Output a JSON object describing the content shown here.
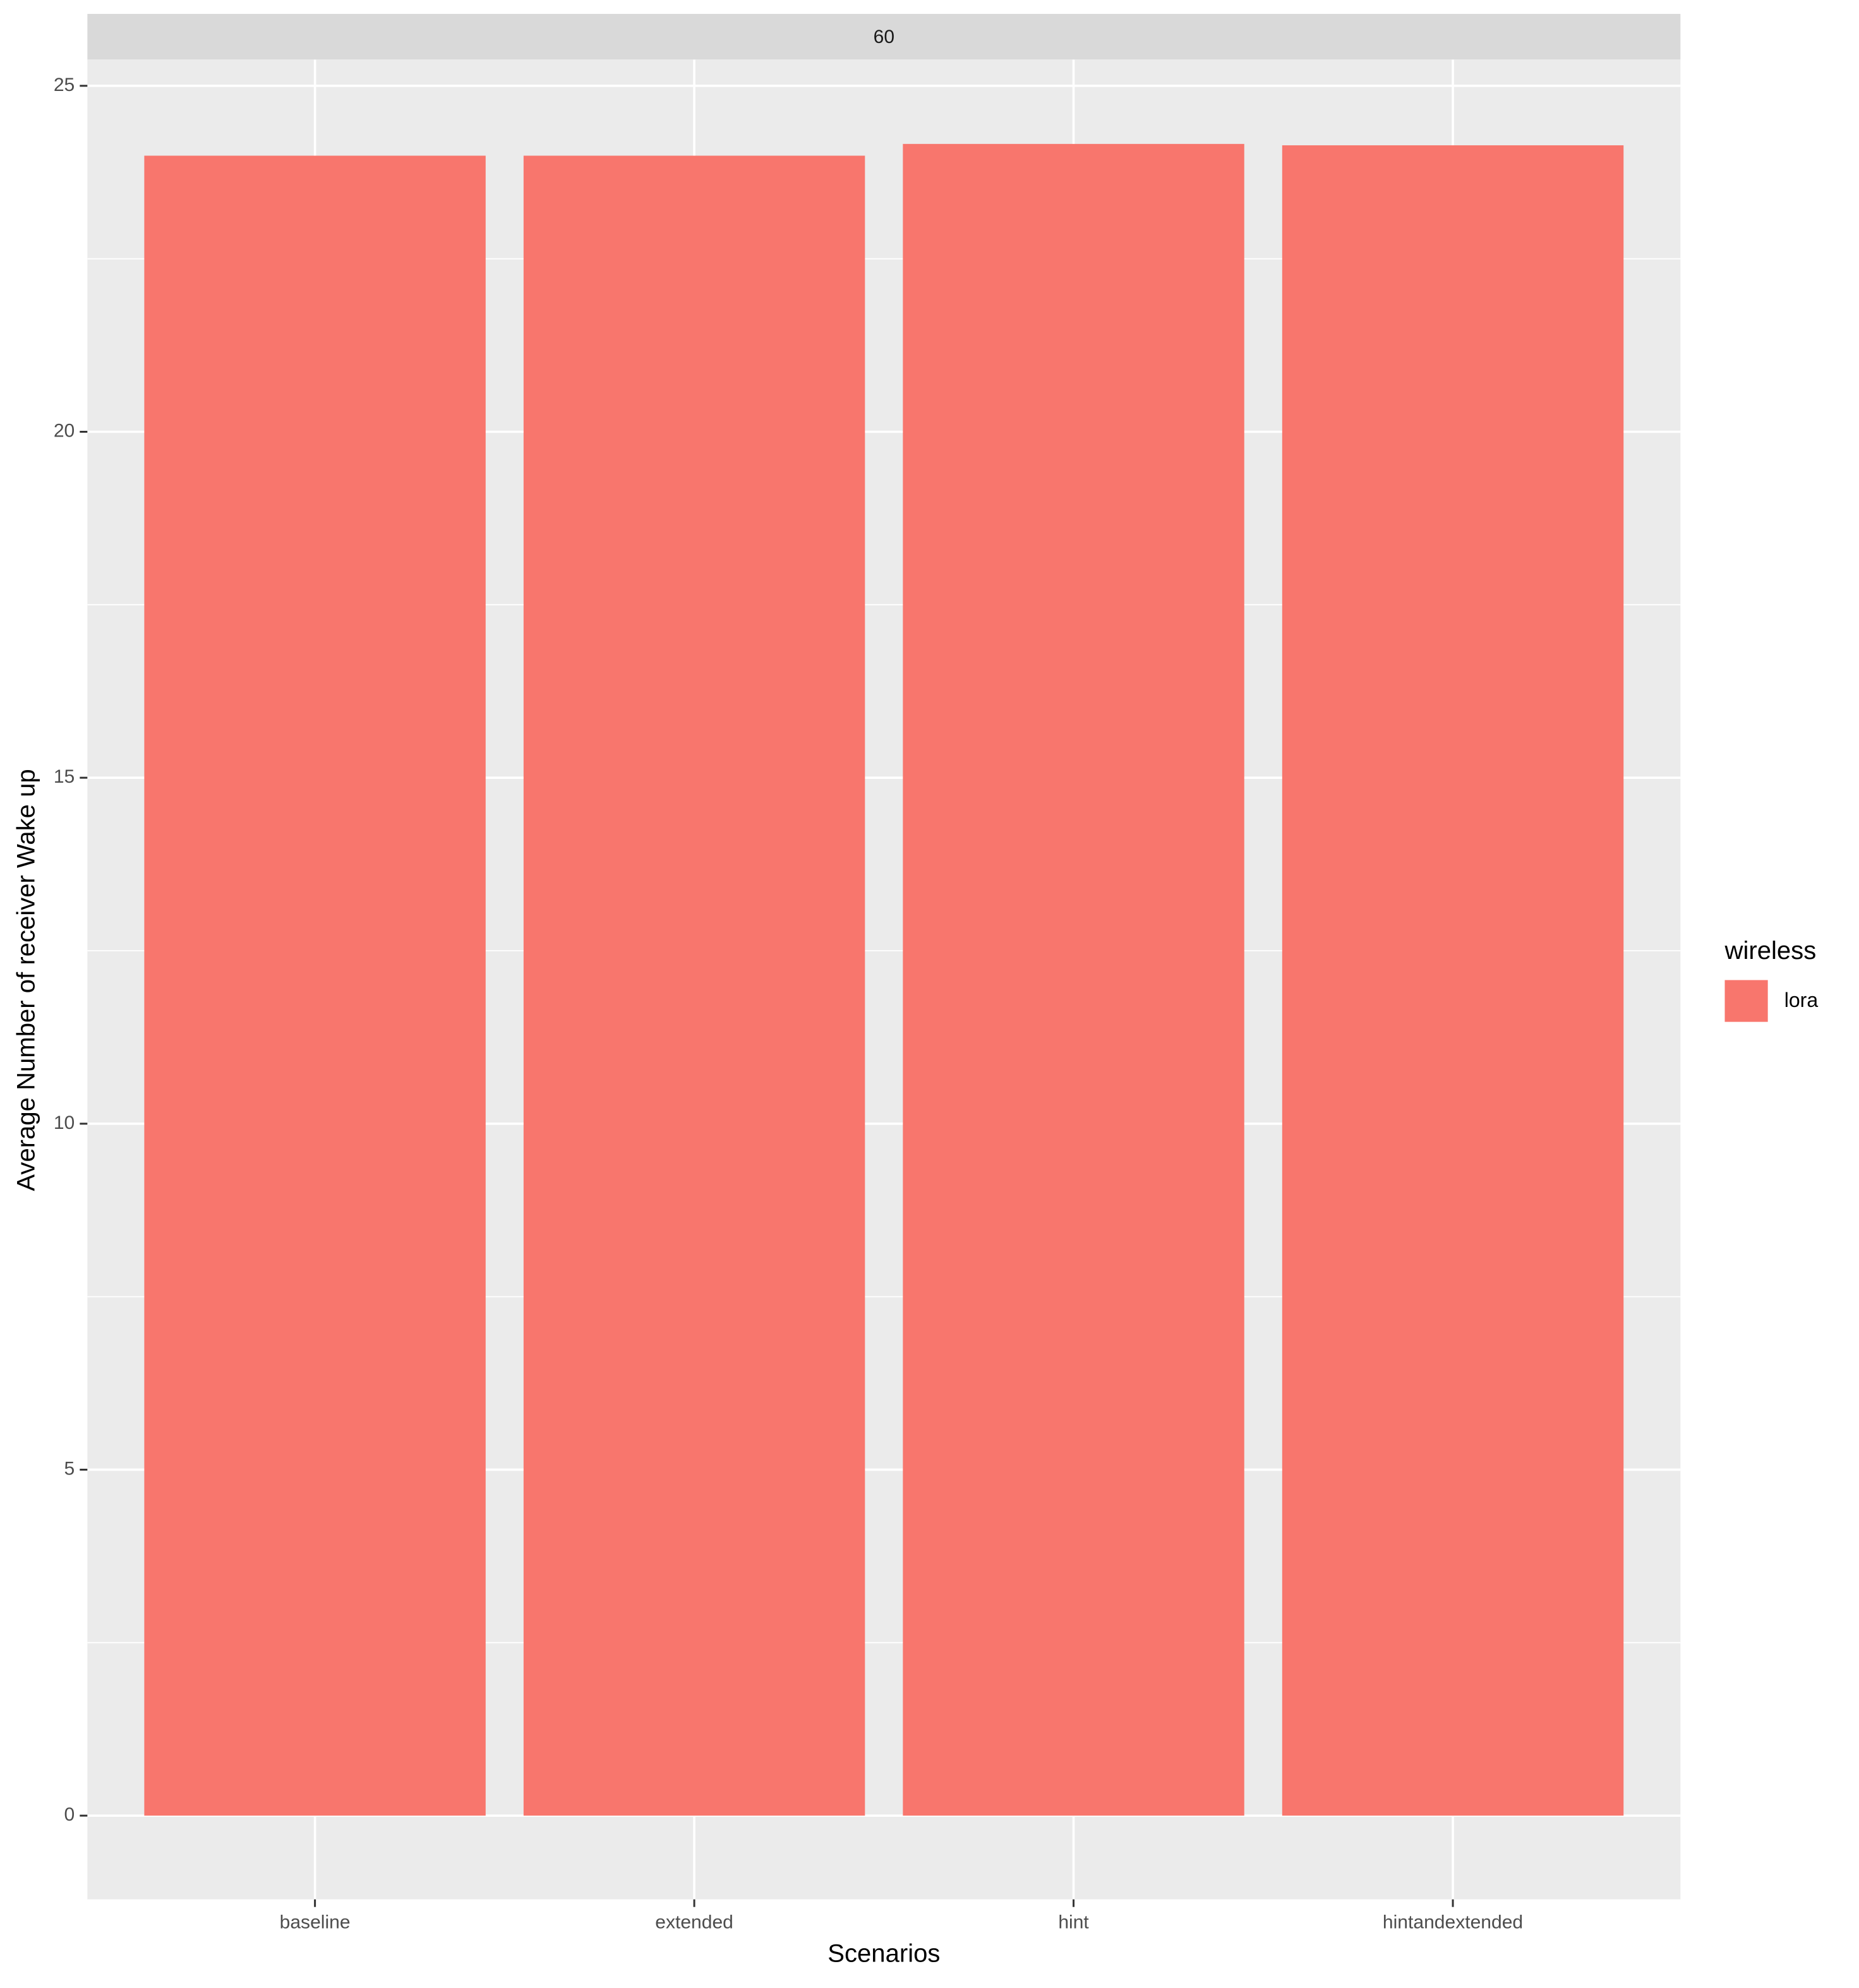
{
  "chart_data": {
    "type": "bar",
    "facet_label": "60",
    "x_label": "Scenarios",
    "y_label": "Average Number of receiver Wake up",
    "legend_title": "wireless",
    "categories": [
      "baseline",
      "extended",
      "hint",
      "hintandextended"
    ],
    "series": [
      {
        "name": "lora",
        "color": "#f8766d",
        "values": [
          23.99,
          23.99,
          24.16,
          24.14
        ]
      }
    ],
    "ylim": [
      -1.21,
      25.38
    ],
    "yticks": [
      0,
      5,
      10,
      15,
      20,
      25
    ],
    "grid": true,
    "legend_position": "right"
  }
}
